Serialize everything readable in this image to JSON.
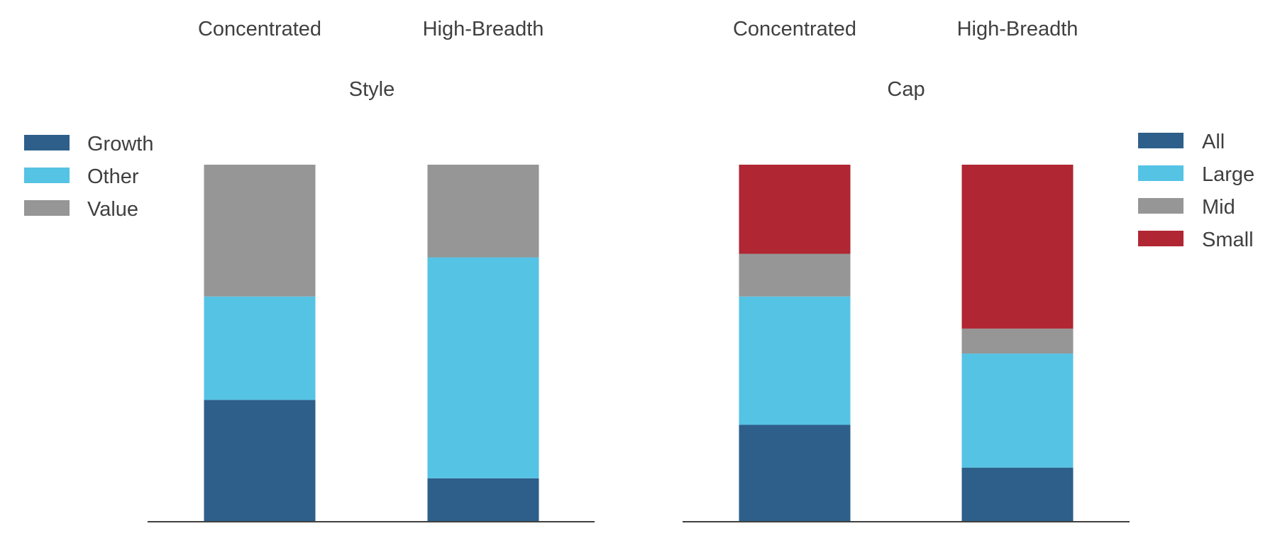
{
  "chart_data": [
    {
      "type": "bar",
      "stacked": true,
      "normalized_to": 100,
      "title": "Style",
      "categories": [
        "Concentrated",
        "High-Breadth"
      ],
      "ylim": [
        0,
        100
      ],
      "grid": false,
      "legend_position": "left",
      "series": [
        {
          "name": "Growth",
          "color": "#2d5f8a",
          "values": [
            34,
            12
          ]
        },
        {
          "name": "Other",
          "color": "#55c3e4",
          "values": [
            29,
            62
          ]
        },
        {
          "name": "Value",
          "color": "#969696",
          "values": [
            37,
            26
          ]
        }
      ]
    },
    {
      "type": "bar",
      "stacked": true,
      "normalized_to": 100,
      "title": "Cap",
      "categories": [
        "Concentrated",
        "High-Breadth"
      ],
      "ylim": [
        0,
        100
      ],
      "grid": false,
      "legend_position": "right",
      "series": [
        {
          "name": "All",
          "color": "#2d5f8a",
          "values": [
            27,
            15
          ]
        },
        {
          "name": "Large",
          "color": "#55c3e4",
          "values": [
            36,
            32
          ]
        },
        {
          "name": "Mid",
          "color": "#969696",
          "values": [
            12,
            7
          ]
        },
        {
          "name": "Small",
          "color": "#b02632",
          "values": [
            25,
            46
          ]
        }
      ]
    }
  ]
}
